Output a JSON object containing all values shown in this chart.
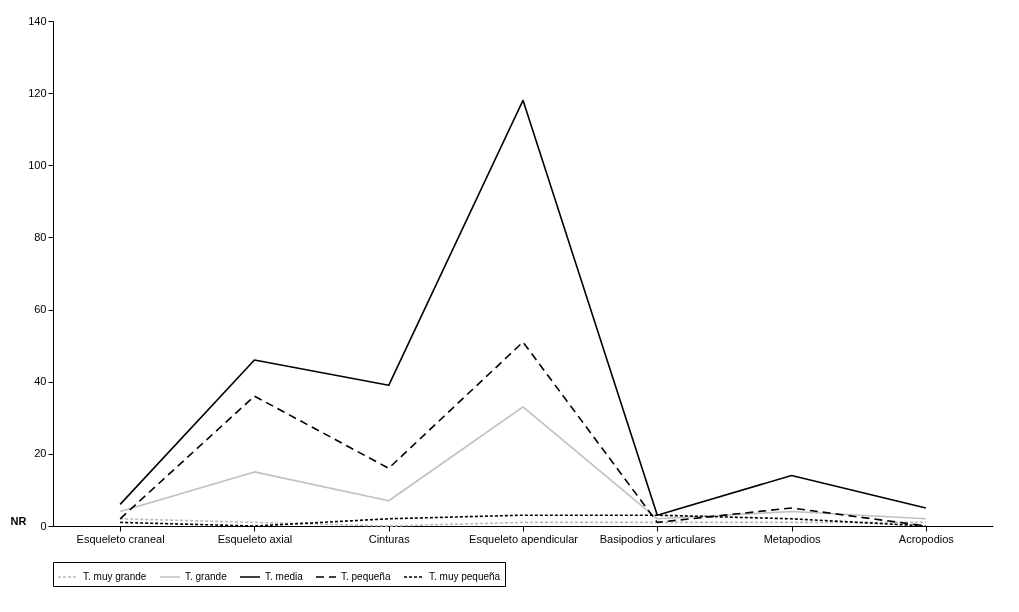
{
  "chart_data": {
    "type": "line",
    "ylabel": "NR",
    "categories": [
      "Esqueleto craneal",
      "Esqueleto axial",
      "Cinturas",
      "Esqueleto apendicular",
      "Basipodios y articulares",
      "Metapodios",
      "Acropodios"
    ],
    "series": [
      {
        "name": "T. muy grande",
        "color": "#bbbbbb",
        "line_style": "dotted",
        "values": [
          2,
          1,
          0,
          1,
          1,
          1,
          1
        ]
      },
      {
        "name": "T. grande",
        "color": "#c0c0c0",
        "line_style": "solid",
        "values": [
          4,
          15,
          7,
          33,
          2,
          4,
          2
        ]
      },
      {
        "name": "T. media",
        "color": "#000000",
        "line_style": "solid",
        "values": [
          6,
          46,
          39,
          118,
          3,
          14,
          5
        ]
      },
      {
        "name": "T. pequeña",
        "color": "#000000",
        "line_style": "dashed",
        "values": [
          2,
          36,
          16,
          51,
          1,
          5,
          0
        ]
      },
      {
        "name": "T. muy pequeña",
        "color": "#000000",
        "line_style": "dotted",
        "values": [
          1,
          0,
          2,
          3,
          3,
          2,
          0
        ]
      }
    ],
    "ylim": [
      0,
      140
    ],
    "yticks": [
      0,
      20,
      40,
      60,
      80,
      100,
      120,
      140
    ],
    "grid": false,
    "legend": "bottom"
  }
}
